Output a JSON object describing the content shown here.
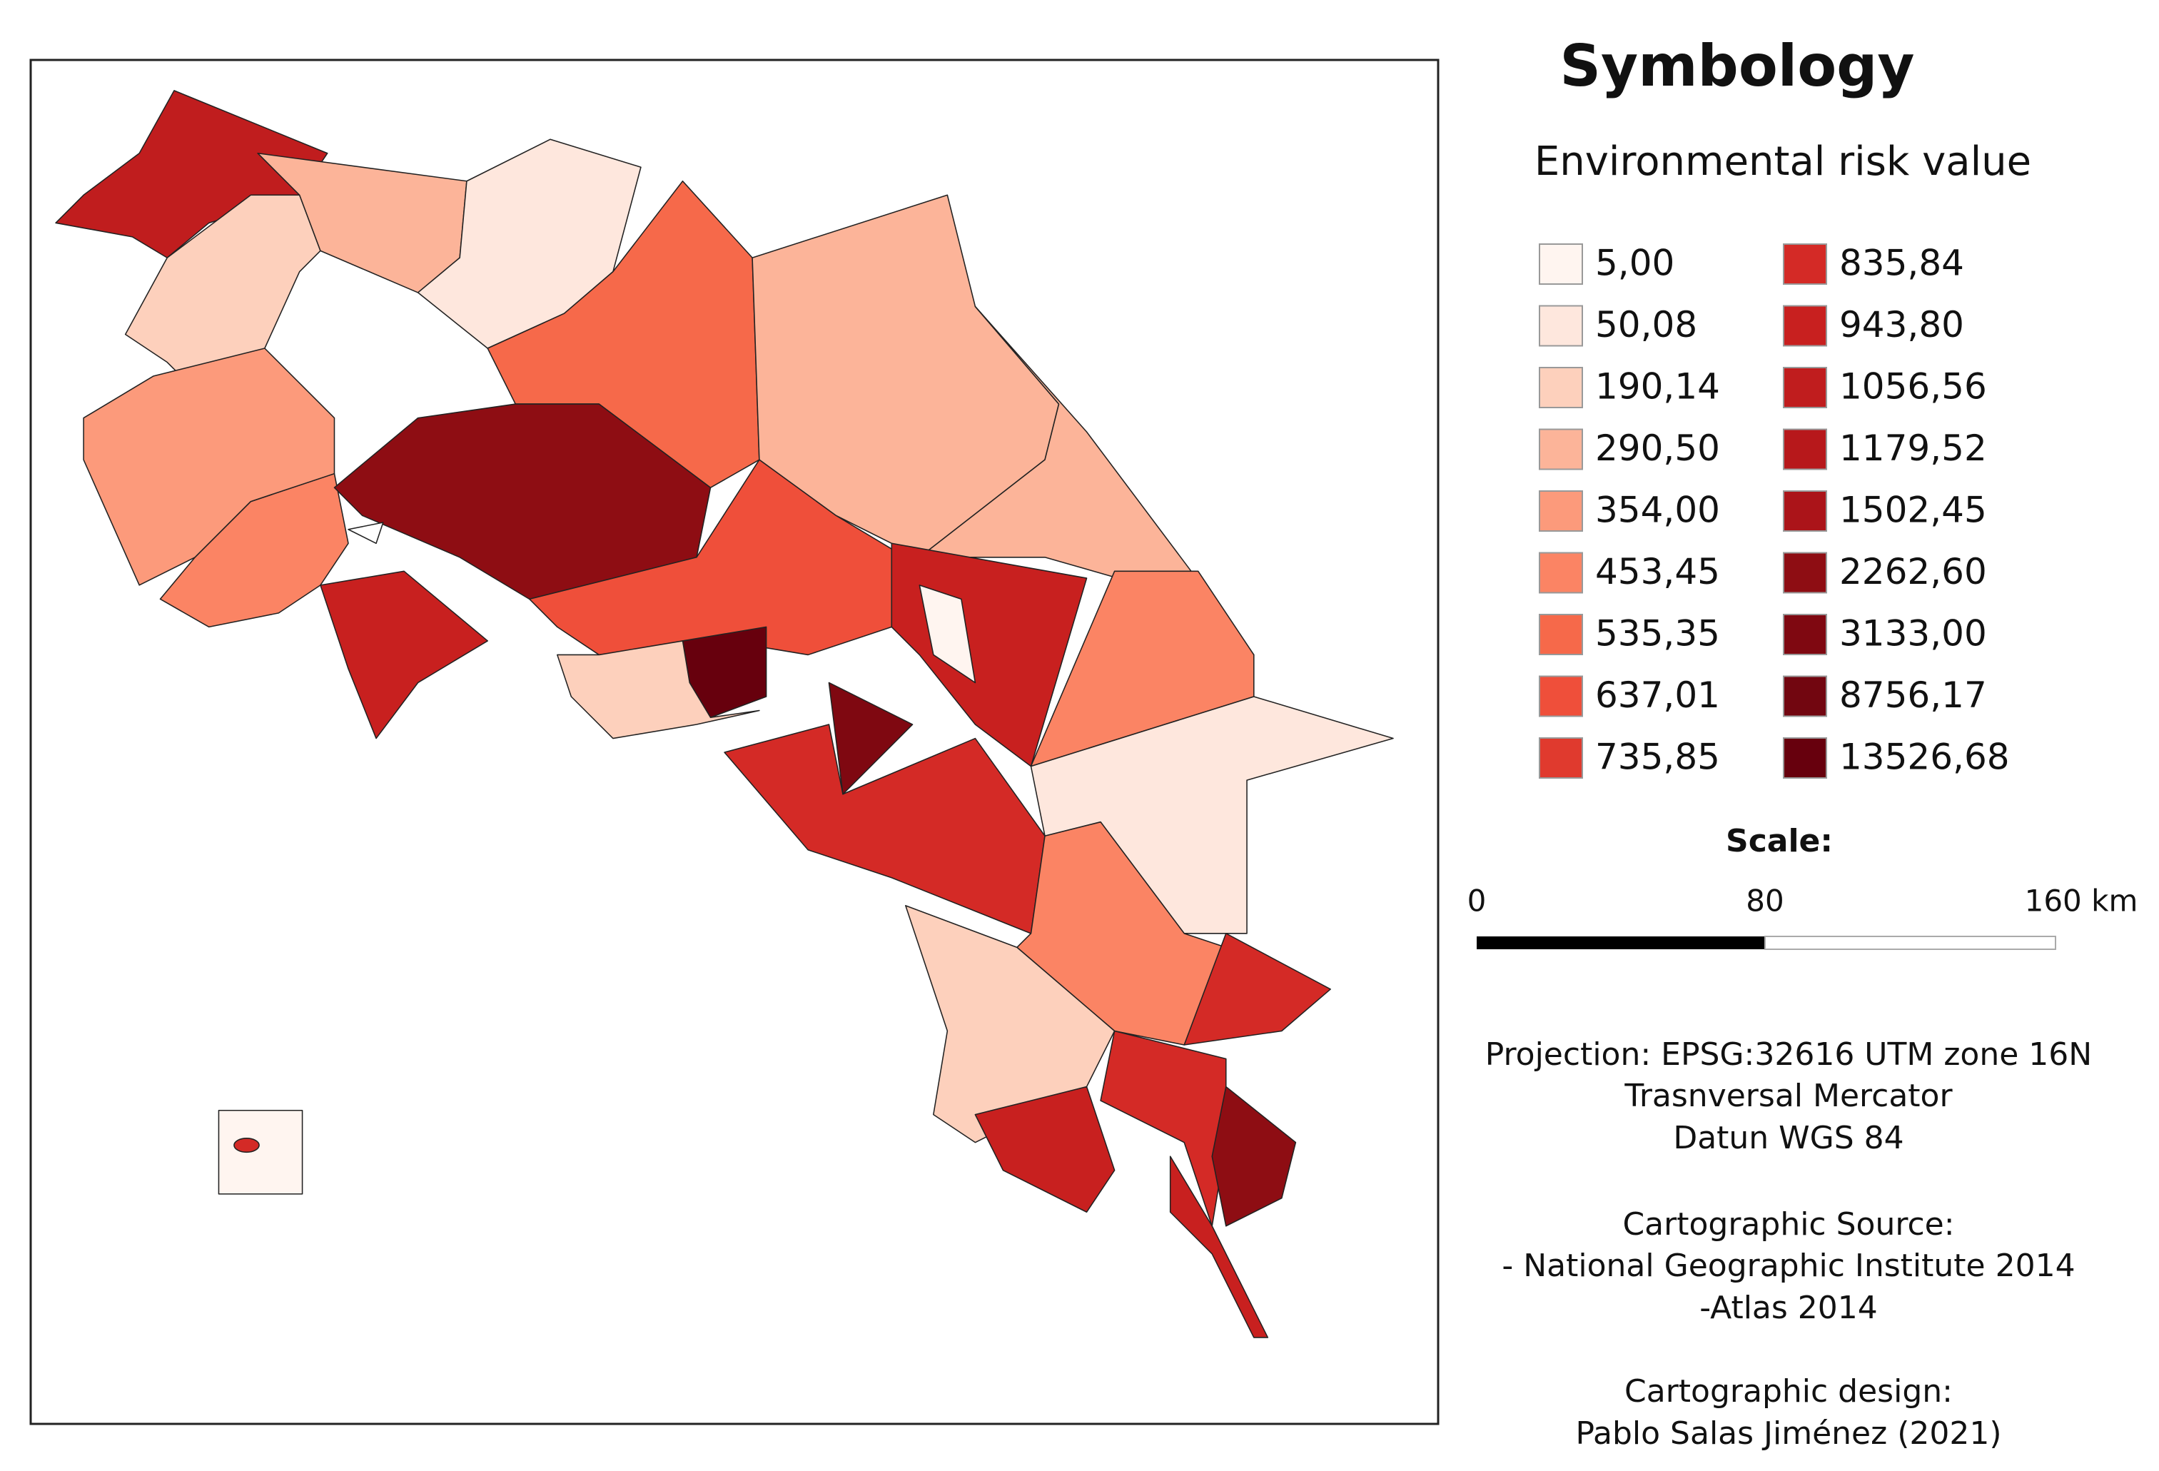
{
  "legend": {
    "title": "Symbology",
    "subtitle": "Environmental risk value",
    "items": [
      {
        "label": "5,00",
        "color": "#fff5f0"
      },
      {
        "label": "50,08",
        "color": "#fee7dd"
      },
      {
        "label": "190,14",
        "color": "#fdd0bc"
      },
      {
        "label": "290,50",
        "color": "#fcb499"
      },
      {
        "label": "354,00",
        "color": "#fc9a7b"
      },
      {
        "label": "453,45",
        "color": "#fb8464"
      },
      {
        "label": "535,35",
        "color": "#f6694a"
      },
      {
        "label": "637,01",
        "color": "#ef4f3a"
      },
      {
        "label": "735,85",
        "color": "#e03a2e"
      },
      {
        "label": "835,84",
        "color": "#d42a26"
      },
      {
        "label": "943,80",
        "color": "#c8201f"
      },
      {
        "label": "1056,56",
        "color": "#c01d1e"
      },
      {
        "label": "1179,52",
        "color": "#b7181b"
      },
      {
        "label": "1502,45",
        "color": "#ab1419"
      },
      {
        "label": "2262,60",
        "color": "#8e0d13"
      },
      {
        "label": "3133,00",
        "color": "#7f0811"
      },
      {
        "label": "8756,17",
        "color": "#720610"
      },
      {
        "label": "13526,68",
        "color": "#67000d"
      }
    ]
  },
  "scale": {
    "title": "Scale:",
    "ticks": [
      "0",
      "80",
      "160 km"
    ]
  },
  "notes": [
    "Projection: EPSG:32616 UTM zone 16N",
    "Trasnversal Mercator",
    "Datun WGS 84",
    "Cartographic Source:",
    "- National Geographic Institute 2014",
    "-Atlas 2014",
    "Cartographic design:",
    "Pablo Salas Jiménez (2021)"
  ]
}
